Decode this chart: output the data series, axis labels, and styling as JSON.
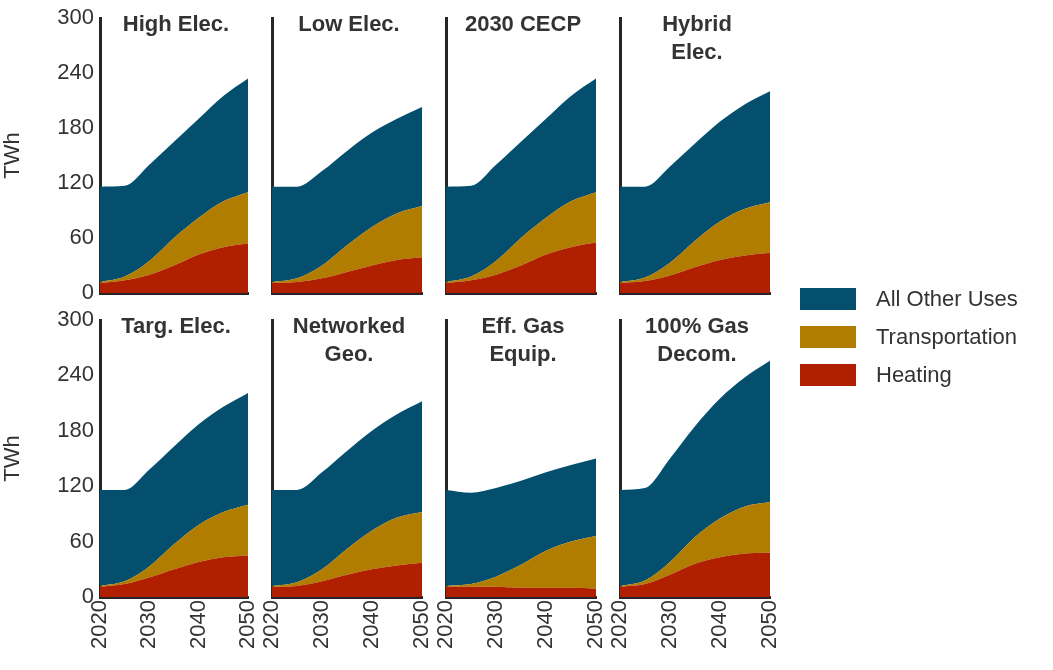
{
  "chart_data": [
    {
      "type": "area",
      "title": "High Elec.",
      "ylabel": "TWh",
      "stacked": true,
      "x": [
        2020,
        2025,
        2030,
        2035,
        2040,
        2045,
        2050
      ],
      "xlim": [
        2020,
        2050
      ],
      "xticks": [
        2020,
        2030,
        2040,
        2050
      ],
      "ylim": [
        0,
        300
      ],
      "yticks": [
        0,
        60,
        120,
        180,
        240,
        300
      ],
      "grid": false,
      "legend": false,
      "tick_labels": "y",
      "series": [
        {
          "color": "#b02000",
          "values": [
            11,
            14,
            20,
            30,
            42,
            50,
            54
          ]
        },
        {
          "color": "#b07d00",
          "values": [
            1,
            4,
            15,
            30,
            40,
            50,
            56
          ]
        },
        {
          "color": "#054f6e",
          "values": [
            104,
            99,
            105,
            105,
            108,
            115,
            124
          ]
        }
      ]
    },
    {
      "type": "area",
      "title": "Low Elec.",
      "stacked": true,
      "x": [
        2020,
        2025,
        2030,
        2035,
        2040,
        2045,
        2050
      ],
      "xlim": [
        2020,
        2050
      ],
      "xticks": [
        2020,
        2030,
        2040,
        2050
      ],
      "ylim": [
        0,
        300
      ],
      "yticks": [
        0,
        60,
        120,
        180,
        240,
        300
      ],
      "grid": false,
      "legend": false,
      "tick_labels": false,
      "series": [
        {
          "color": "#b02000",
          "values": [
            11,
            12,
            16,
            23,
            30,
            36,
            39
          ]
        },
        {
          "color": "#b07d00",
          "values": [
            1,
            4,
            14,
            29,
            42,
            51,
            56
          ]
        },
        {
          "color": "#054f6e",
          "values": [
            104,
            100,
            103,
            103,
            103,
            103,
            108
          ]
        }
      ]
    },
    {
      "type": "area",
      "title": "2030 CECP",
      "stacked": true,
      "x": [
        2020,
        2025,
        2030,
        2035,
        2040,
        2045,
        2050
      ],
      "xlim": [
        2020,
        2050
      ],
      "xticks": [
        2020,
        2030,
        2040,
        2050
      ],
      "ylim": [
        0,
        300
      ],
      "yticks": [
        0,
        60,
        120,
        180,
        240,
        300
      ],
      "grid": false,
      "legend": false,
      "tick_labels": false,
      "series": [
        {
          "color": "#b02000",
          "values": [
            11,
            14,
            20,
            30,
            42,
            50,
            55
          ]
        },
        {
          "color": "#b07d00",
          "values": [
            1,
            4,
            15,
            30,
            40,
            50,
            55
          ]
        },
        {
          "color": "#054f6e",
          "values": [
            104,
            99,
            105,
            105,
            108,
            115,
            124
          ]
        }
      ]
    },
    {
      "type": "area",
      "title": "Hybrid\nElec.",
      "stacked": true,
      "x": [
        2020,
        2025,
        2030,
        2035,
        2040,
        2045,
        2050
      ],
      "xlim": [
        2020,
        2050
      ],
      "xticks": [
        2020,
        2030,
        2040,
        2050
      ],
      "ylim": [
        0,
        300
      ],
      "yticks": [
        0,
        60,
        120,
        180,
        240,
        300
      ],
      "grid": false,
      "legend": "right",
      "tick_labels": false,
      "series": [
        {
          "name": "Heating",
          "color": "#b02000",
          "values": [
            11,
            13,
            19,
            28,
            36,
            41,
            44
          ]
        },
        {
          "name": "Transportation",
          "color": "#b07d00",
          "values": [
            1,
            4,
            14,
            29,
            42,
            51,
            55
          ]
        },
        {
          "name": "All Other Uses",
          "color": "#054f6e",
          "values": [
            104,
            99,
            105,
            106,
            109,
            114,
            121
          ]
        }
      ]
    },
    {
      "type": "area",
      "title": "Targ. Elec.",
      "ylabel": "TWh",
      "stacked": true,
      "x": [
        2020,
        2025,
        2030,
        2035,
        2040,
        2045,
        2050
      ],
      "xlim": [
        2020,
        2050
      ],
      "xticks": [
        2020,
        2030,
        2040,
        2050
      ],
      "ylim": [
        0,
        300
      ],
      "yticks": [
        0,
        60,
        120,
        180,
        240,
        300
      ],
      "grid": false,
      "legend": false,
      "series": [
        {
          "color": "#b02000",
          "values": [
            11,
            14,
            21,
            30,
            38,
            43,
            45
          ]
        },
        {
          "color": "#b07d00",
          "values": [
            1,
            3,
            12,
            27,
            40,
            49,
            55
          ]
        },
        {
          "color": "#054f6e",
          "values": [
            104,
            99,
            105,
            106,
            109,
            114,
            121
          ]
        }
      ]
    },
    {
      "type": "area",
      "title": "Networked\nGeo.",
      "stacked": true,
      "x": [
        2020,
        2025,
        2030,
        2035,
        2040,
        2045,
        2050
      ],
      "xlim": [
        2020,
        2050
      ],
      "xticks": [
        2020,
        2030,
        2040,
        2050
      ],
      "ylim": [
        0,
        300
      ],
      "yticks": [
        0,
        60,
        120,
        180,
        240,
        300
      ],
      "grid": false,
      "legend": false,
      "tick_labels": "x",
      "series": [
        {
          "color": "#b02000",
          "values": [
            11,
            12,
            17,
            24,
            30,
            34,
            37
          ]
        },
        {
          "color": "#b07d00",
          "values": [
            1,
            4,
            13,
            28,
            42,
            52,
            55
          ]
        },
        {
          "color": "#054f6e",
          "values": [
            104,
            100,
            105,
            106,
            108,
            112,
            120
          ]
        }
      ]
    },
    {
      "type": "area",
      "title": "Eff. Gas\nEquip.",
      "stacked": true,
      "x": [
        2020,
        2025,
        2030,
        2035,
        2040,
        2045,
        2050
      ],
      "xlim": [
        2020,
        2050
      ],
      "xticks": [
        2020,
        2030,
        2040,
        2050
      ],
      "ylim": [
        0,
        300
      ],
      "yticks": [
        0,
        60,
        120,
        180,
        240,
        300
      ],
      "grid": false,
      "legend": false,
      "tick_labels": "x",
      "series": [
        {
          "color": "#b02000",
          "values": [
            11,
            11,
            11,
            10,
            10,
            10,
            9
          ]
        },
        {
          "color": "#b07d00",
          "values": [
            1,
            3,
            11,
            25,
            40,
            50,
            57
          ]
        },
        {
          "color": "#054f6e",
          "values": [
            104,
            99,
            96,
            91,
            85,
            83,
            84
          ]
        }
      ]
    },
    {
      "type": "area",
      "title": "100% Gas\nDecom.",
      "stacked": true,
      "x": [
        2020,
        2025,
        2030,
        2035,
        2040,
        2045,
        2050
      ],
      "xlim": [
        2020,
        2050
      ],
      "xticks": [
        2020,
        2030,
        2040,
        2050
      ],
      "ylim": [
        0,
        300
      ],
      "yticks": [
        0,
        60,
        120,
        180,
        240,
        300
      ],
      "grid": false,
      "legend": false,
      "tick_labels": "x",
      "series": [
        {
          "color": "#b02000",
          "values": [
            11,
            14,
            24,
            36,
            43,
            47,
            48
          ]
        },
        {
          "color": "#b07d00",
          "values": [
            1,
            4,
            14,
            29,
            42,
            51,
            55
          ]
        },
        {
          "color": "#054f6e",
          "values": [
            104,
            100,
            112,
            120,
            130,
            140,
            153
          ]
        }
      ]
    }
  ]
}
